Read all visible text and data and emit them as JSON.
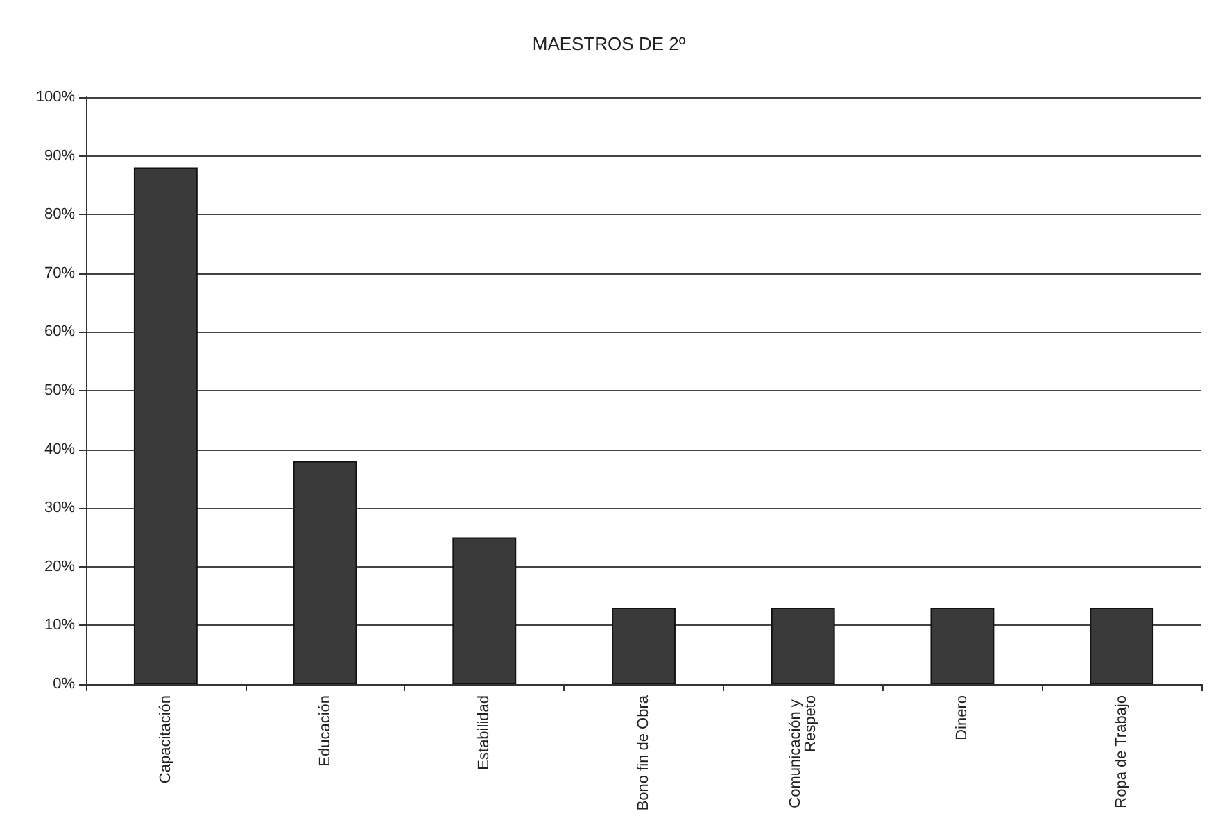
{
  "chart_data": {
    "type": "bar",
    "title": "MAESTROS DE 2º",
    "categories": [
      "Capacitación",
      "Educación",
      "Estabilidad",
      "Bono fin de Obra",
      "Comunicación y Respeto",
      "Dinero",
      "Ropa de Trabajo"
    ],
    "values": [
      88,
      38,
      25,
      13,
      13,
      13,
      13
    ],
    "color": "#3a3a3a",
    "ylim": [
      0,
      100
    ],
    "yticks": [
      {
        "value": 0,
        "label": "0%"
      },
      {
        "value": 10,
        "label": "10%"
      },
      {
        "value": 20,
        "label": "20%"
      },
      {
        "value": 30,
        "label": "30%"
      },
      {
        "value": 40,
        "label": "40%"
      },
      {
        "value": 50,
        "label": "50%"
      },
      {
        "value": 60,
        "label": "60%"
      },
      {
        "value": 70,
        "label": "70%"
      },
      {
        "value": 80,
        "label": "80%"
      },
      {
        "value": 90,
        "label": "90%"
      },
      {
        "value": 100,
        "label": "100%"
      }
    ],
    "grid": "y"
  }
}
